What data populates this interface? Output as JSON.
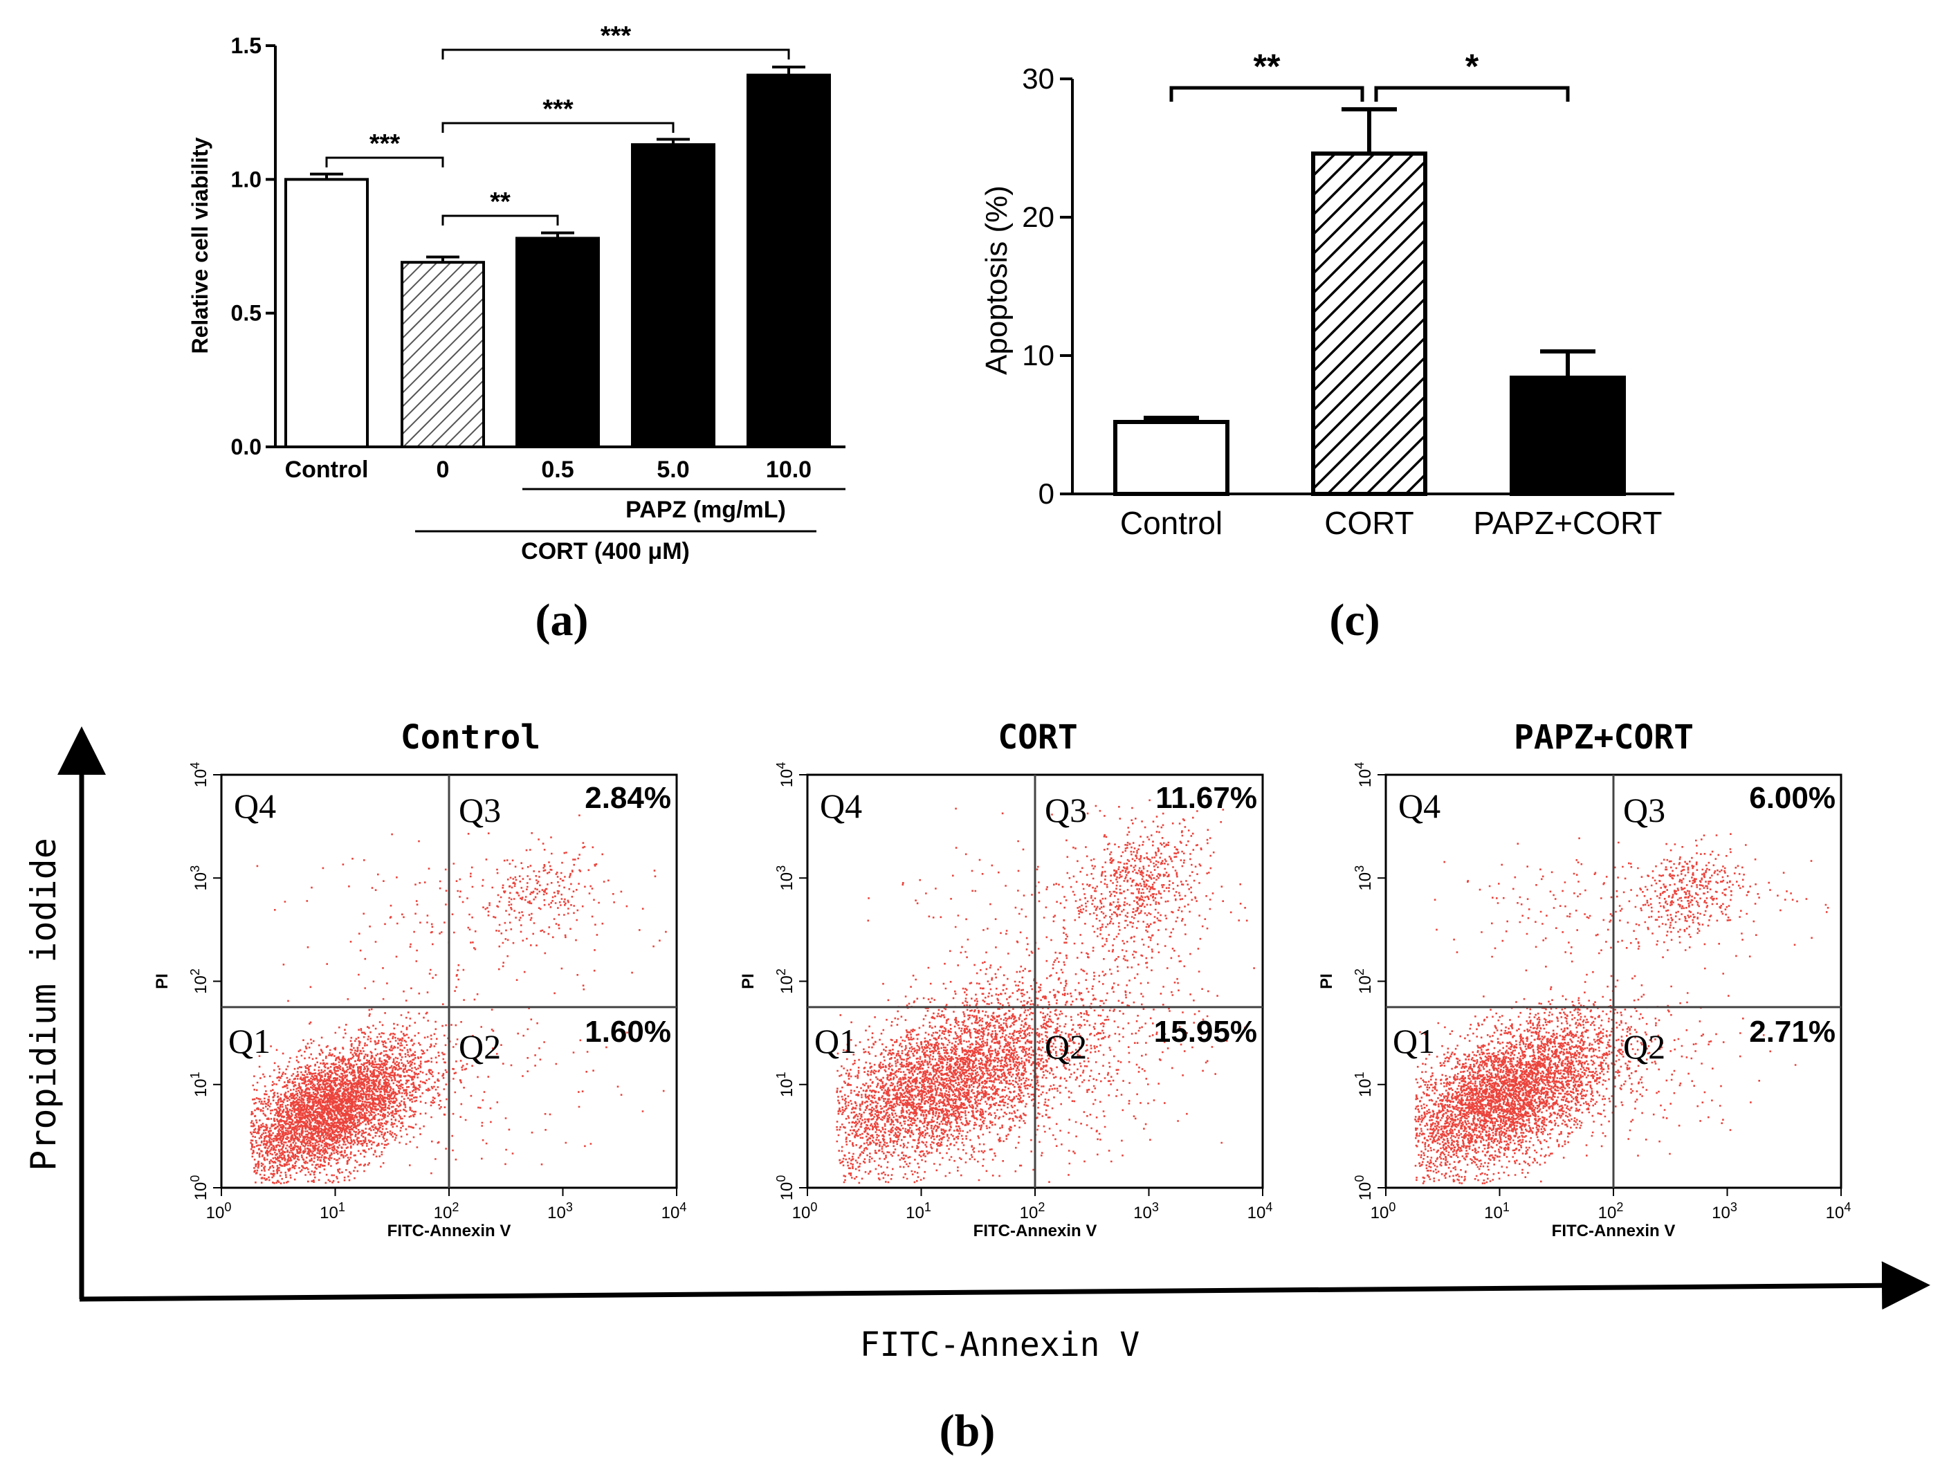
{
  "colors": {
    "ink": "#000000",
    "dot": "#e8231a",
    "dot_dense": "#d91a10",
    "bg": "#ffffff"
  },
  "chart_data": [
    {
      "panel_label": "(a)",
      "type": "bar",
      "ylabel": "Relative cell viability",
      "ylim": [
        0,
        1.5
      ],
      "yticks": [
        "0.0",
        "0.5",
        "1.0",
        "1.5"
      ],
      "categories": [
        "Control",
        "0",
        "0.5",
        "5.0",
        "10.0"
      ],
      "values": [
        1.0,
        0.69,
        0.78,
        1.13,
        1.39
      ],
      "errors": [
        0.02,
        0.02,
        0.02,
        0.02,
        0.03
      ],
      "fills": [
        "white",
        "hatch",
        "black",
        "black",
        "black"
      ],
      "group_labels": {
        "papz": "PAPZ (mg/mL)",
        "cort": "CORT (400 μM)"
      },
      "significance": [
        {
          "from": 0,
          "to": 1,
          "label": "***"
        },
        {
          "from": 1,
          "to": 2,
          "label": "**"
        },
        {
          "from": 1,
          "to": 3,
          "label": "***"
        },
        {
          "from": 1,
          "to": 4,
          "label": "***"
        }
      ]
    },
    {
      "panel_label": "(c)",
      "type": "bar",
      "ylabel": "Apoptosis (%)",
      "ylim": [
        0,
        30
      ],
      "yticks": [
        "0",
        "10",
        "20",
        "30"
      ],
      "categories": [
        "Control",
        "CORT",
        "PAPZ+CORT"
      ],
      "values": [
        5.2,
        24.6,
        8.4
      ],
      "errors": [
        0.3,
        3.2,
        1.9
      ],
      "fills": [
        "white",
        "hatch",
        "black"
      ],
      "significance": [
        {
          "from": 0,
          "to": 1,
          "label": "**"
        },
        {
          "from": 1,
          "to": 2,
          "label": "*"
        }
      ]
    },
    {
      "panel_label": "(b)",
      "type": "scatter",
      "outer_ylabel": "Propidium iodide",
      "outer_xlabel": "FITC-Annexin V",
      "axis_xlabel": "FITC-Annexin V",
      "axis_ylabel": "PI",
      "tick_exponents": [
        "0",
        "1",
        "2",
        "3",
        "4"
      ],
      "tick_base": "10",
      "quadrant_names": [
        "Q1",
        "Q2",
        "Q3",
        "Q4"
      ],
      "plots": [
        {
          "title": "Control",
          "q3": "2.84%",
          "q2": "1.60%",
          "gate_x": 2.0,
          "gate_y": 1.75,
          "n": 5200
        },
        {
          "title": "CORT",
          "q3": "11.67%",
          "q2": "15.95%",
          "gate_x": 2.0,
          "gate_y": 1.75,
          "n": 5600
        },
        {
          "title": "PAPZ+CORT",
          "q3": "6.00%",
          "q2": "2.71%",
          "gate_x": 2.0,
          "gate_y": 1.75,
          "n": 5300
        }
      ]
    }
  ]
}
